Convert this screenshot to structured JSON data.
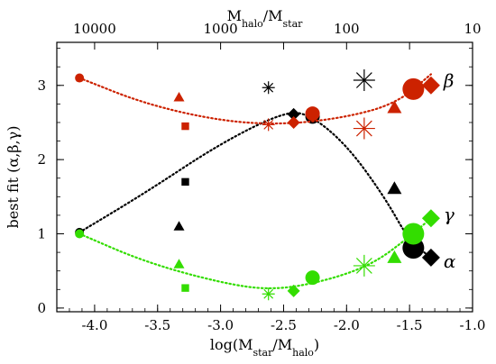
{
  "chart_data": {
    "type": "scatter",
    "title": "",
    "xlabel": "log(M_star/M_halo)",
    "ylabel": "best fit (α,β,γ)",
    "top_xlabel": "M_halo/M_star",
    "xlim": [
      -4.3,
      -1.0
    ],
    "ylim": [
      -0.05,
      3.58
    ],
    "x_ticks": [
      -4.0,
      -3.5,
      -3.0,
      -2.5,
      -2.0,
      -1.5,
      -1.0
    ],
    "y_ticks": [
      0,
      1,
      2,
      3
    ],
    "x_tick_labels": [
      "-4.0",
      "-3.5",
      "-3.0",
      "-2.5",
      "-2.0",
      "-1.5",
      "-1.0"
    ],
    "y_tick_labels": [
      "0",
      "1",
      "2",
      "3"
    ],
    "top_axis_ticks": [
      {
        "label": "10000",
        "value": 10000
      },
      {
        "label": "1000",
        "value": 1000
      },
      {
        "label": "100",
        "value": 100
      },
      {
        "label": "10",
        "value": 10
      }
    ],
    "grid": false,
    "series": [
      {
        "name": "α",
        "color": "#000000",
        "points": [
          {
            "x": -4.12,
            "y": 1.02,
            "marker": "circle",
            "size": 5
          },
          {
            "x": -3.28,
            "y": 1.7,
            "marker": "square",
            "size": 6
          },
          {
            "x": -3.33,
            "y": 1.1,
            "marker": "triangle",
            "size": 6
          },
          {
            "x": -2.62,
            "y": 2.97,
            "marker": "asterisk",
            "size": 7
          },
          {
            "x": -2.42,
            "y": 2.61,
            "marker": "diamond",
            "size": 7
          },
          {
            "x": -2.27,
            "y": 2.58,
            "marker": "circle",
            "size": 8
          },
          {
            "x": -1.86,
            "y": 3.07,
            "marker": "asterisk",
            "size": 12
          },
          {
            "x": -1.62,
            "y": 1.61,
            "marker": "triangle",
            "size": 8
          },
          {
            "x": -1.47,
            "y": 0.81,
            "marker": "circle",
            "size": 12
          },
          {
            "x": -1.33,
            "y": 0.68,
            "marker": "diamond",
            "size": 10
          }
        ],
        "trend": [
          [
            -4.12,
            1.02
          ],
          [
            -3.6,
            1.55
          ],
          [
            -3.0,
            2.22
          ],
          [
            -2.5,
            2.64
          ],
          [
            -2.3,
            2.62
          ],
          [
            -2.0,
            2.2
          ],
          [
            -1.7,
            1.5
          ],
          [
            -1.5,
            0.9
          ],
          [
            -1.33,
            0.68
          ]
        ],
        "label": "α",
        "label_pos": {
          "x": -1.23,
          "y": 0.62
        }
      },
      {
        "name": "β",
        "color": "#cc2200",
        "points": [
          {
            "x": -4.12,
            "y": 3.1,
            "marker": "circle",
            "size": 5
          },
          {
            "x": -3.28,
            "y": 2.45,
            "marker": "square",
            "size": 6
          },
          {
            "x": -3.33,
            "y": 2.84,
            "marker": "triangle",
            "size": 6
          },
          {
            "x": -2.62,
            "y": 2.47,
            "marker": "asterisk",
            "size": 7
          },
          {
            "x": -2.42,
            "y": 2.5,
            "marker": "diamond",
            "size": 7
          },
          {
            "x": -2.27,
            "y": 2.62,
            "marker": "circle",
            "size": 8
          },
          {
            "x": -1.86,
            "y": 2.42,
            "marker": "asterisk",
            "size": 12
          },
          {
            "x": -1.62,
            "y": 2.7,
            "marker": "triangle",
            "size": 8
          },
          {
            "x": -1.47,
            "y": 2.95,
            "marker": "circle",
            "size": 12
          },
          {
            "x": -1.33,
            "y": 3.0,
            "marker": "diamond",
            "size": 10
          }
        ],
        "trend": [
          [
            -4.12,
            3.1
          ],
          [
            -3.6,
            2.75
          ],
          [
            -3.0,
            2.52
          ],
          [
            -2.5,
            2.47
          ],
          [
            -2.0,
            2.57
          ],
          [
            -1.6,
            2.76
          ],
          [
            -1.33,
            3.15
          ]
        ],
        "label": "β",
        "label_pos": {
          "x": -1.23,
          "y": 3.05
        }
      },
      {
        "name": "γ",
        "color": "#33dd00",
        "points": [
          {
            "x": -4.12,
            "y": 1.0,
            "marker": "circle",
            "size": 5
          },
          {
            "x": -3.28,
            "y": 0.27,
            "marker": "square",
            "size": 6
          },
          {
            "x": -3.33,
            "y": 0.59,
            "marker": "triangle",
            "size": 6
          },
          {
            "x": -2.62,
            "y": 0.19,
            "marker": "asterisk",
            "size": 7
          },
          {
            "x": -2.42,
            "y": 0.23,
            "marker": "diamond",
            "size": 7
          },
          {
            "x": -2.27,
            "y": 0.41,
            "marker": "circle",
            "size": 8
          },
          {
            "x": -1.86,
            "y": 0.57,
            "marker": "asterisk",
            "size": 12
          },
          {
            "x": -1.62,
            "y": 0.68,
            "marker": "triangle",
            "size": 8
          },
          {
            "x": -1.47,
            "y": 1.0,
            "marker": "circle",
            "size": 12
          },
          {
            "x": -1.33,
            "y": 1.21,
            "marker": "diamond",
            "size": 10
          }
        ],
        "trend": [
          [
            -4.12,
            1.0
          ],
          [
            -3.6,
            0.62
          ],
          [
            -3.0,
            0.34
          ],
          [
            -2.6,
            0.24
          ],
          [
            -2.2,
            0.35
          ],
          [
            -1.8,
            0.58
          ],
          [
            -1.5,
            0.96
          ],
          [
            -1.33,
            1.21
          ]
        ],
        "label": "γ",
        "label_pos": {
          "x": -1.23,
          "y": 1.25
        }
      }
    ]
  }
}
